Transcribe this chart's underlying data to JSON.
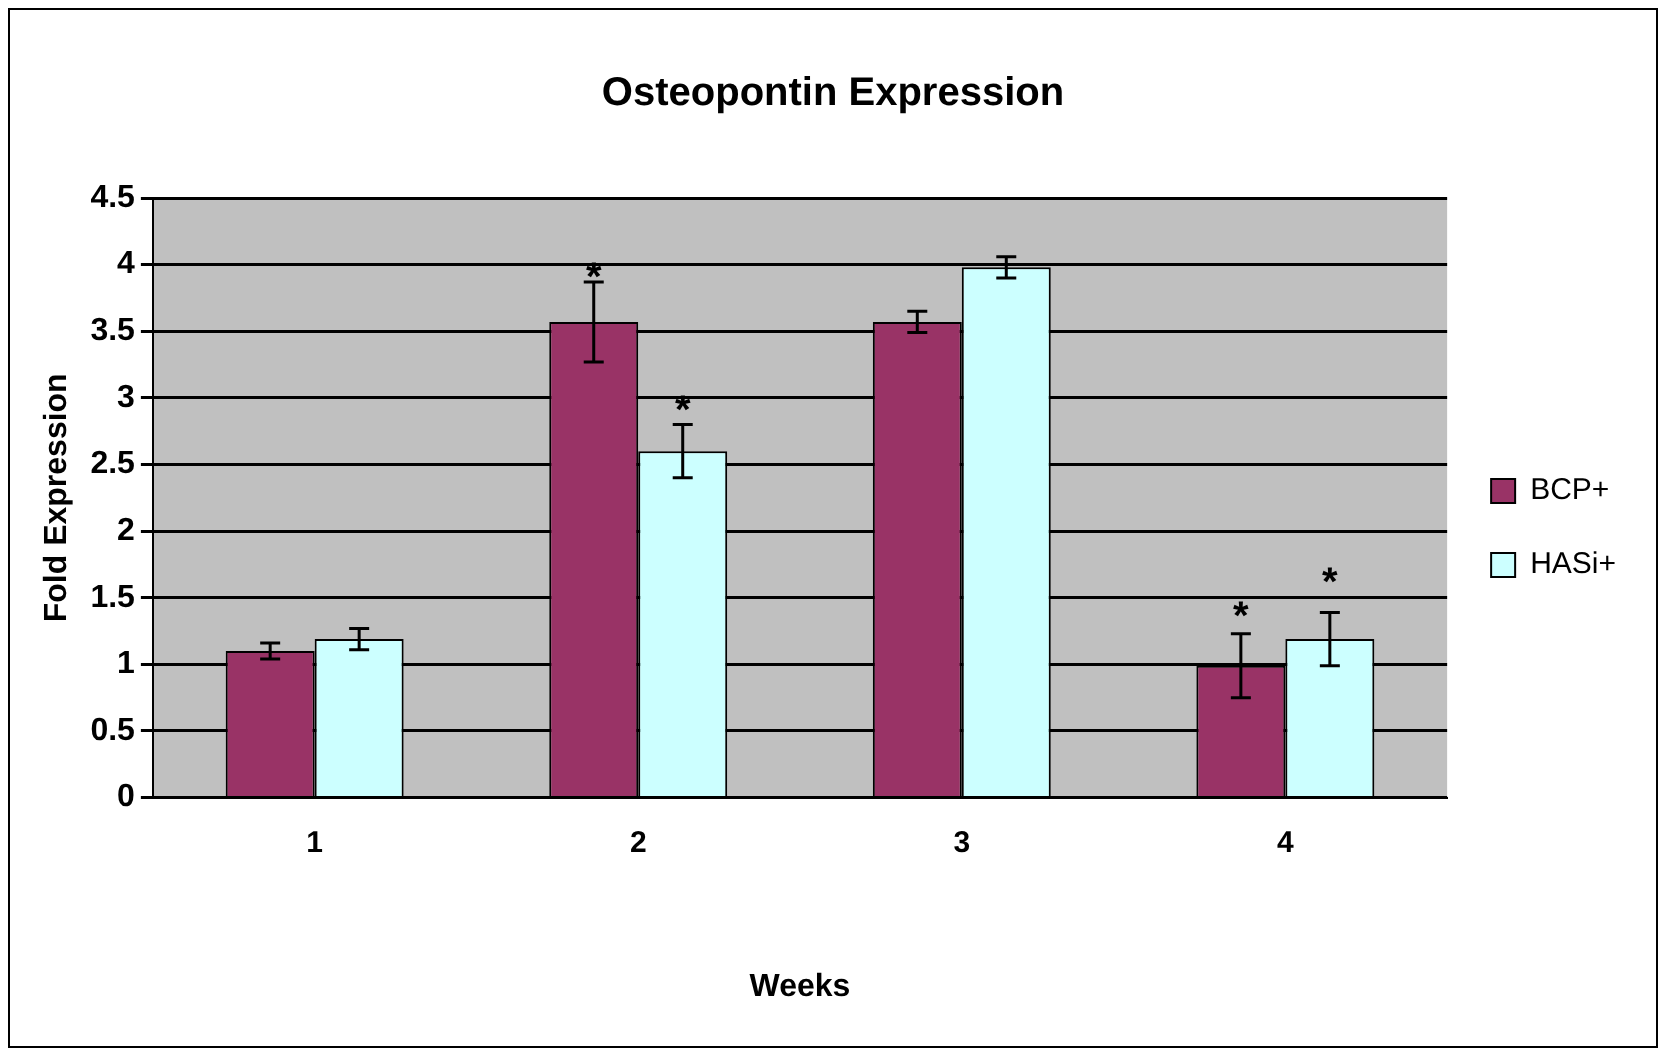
{
  "chart_data": {
    "type": "bar",
    "title": "Osteopontin Expression",
    "xlabel": "Weeks",
    "ylabel": "Fold Expression",
    "categories": [
      "1",
      "2",
      "3",
      "4"
    ],
    "series": [
      {
        "name": "BCP+",
        "color": "#993366",
        "values": [
          1.1,
          3.57,
          3.57,
          0.99
        ],
        "errors": [
          0.06,
          0.3,
          0.08,
          0.24
        ]
      },
      {
        "name": "HASi+",
        "color": "#ccffff",
        "values": [
          1.19,
          2.6,
          3.98,
          1.19
        ],
        "errors": [
          0.08,
          0.2,
          0.08,
          0.2
        ]
      }
    ],
    "ylim": [
      0,
      4.5
    ],
    "yticks": [
      0,
      0.5,
      1,
      1.5,
      2,
      2.5,
      3,
      3.5,
      4,
      4.5
    ],
    "grid": "y",
    "legend": "right",
    "annotations": [
      {
        "text": "*",
        "x": "2",
        "y": 3.57
      },
      {
        "text": "*",
        "x": "2",
        "y": 2.6
      },
      {
        "text": "*",
        "x": "4",
        "y": 0.99
      },
      {
        "text": "*",
        "x": "4",
        "y": 1.19
      }
    ]
  }
}
